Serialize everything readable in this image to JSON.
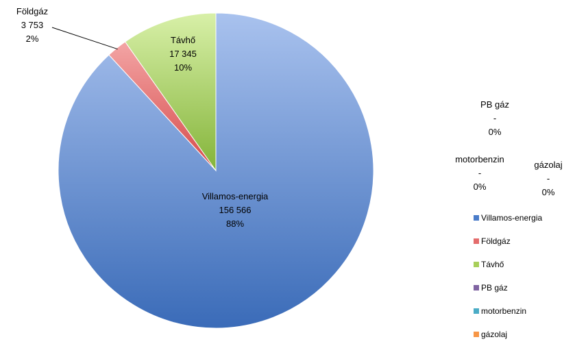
{
  "chart_data": {
    "type": "pie",
    "title": "",
    "slices": [
      {
        "name": "Villamos-energia",
        "value": 156566,
        "value_label": "156 566",
        "percent_label": "88%",
        "color": "#4a7cc9"
      },
      {
        "name": "Földgáz",
        "value": 3753,
        "value_label": "3 753",
        "percent_label": "2%",
        "color": "#e46c6c"
      },
      {
        "name": "Távhő",
        "value": 17345,
        "value_label": "17 345",
        "percent_label": "10%",
        "color": "#a8cf5a"
      },
      {
        "name": "PB gáz",
        "value": 0,
        "value_label": "-",
        "percent_label": "0%",
        "color": "#8064a2"
      },
      {
        "name": "motorbenzin",
        "value": 0,
        "value_label": "-",
        "percent_label": "0%",
        "color": "#4bacc6"
      },
      {
        "name": "gázolaj",
        "value": 0,
        "value_label": "-",
        "percent_label": "0%",
        "color": "#f79646"
      }
    ],
    "legend_position": "right",
    "start_angle_deg": 0,
    "direction": "clockwise"
  }
}
